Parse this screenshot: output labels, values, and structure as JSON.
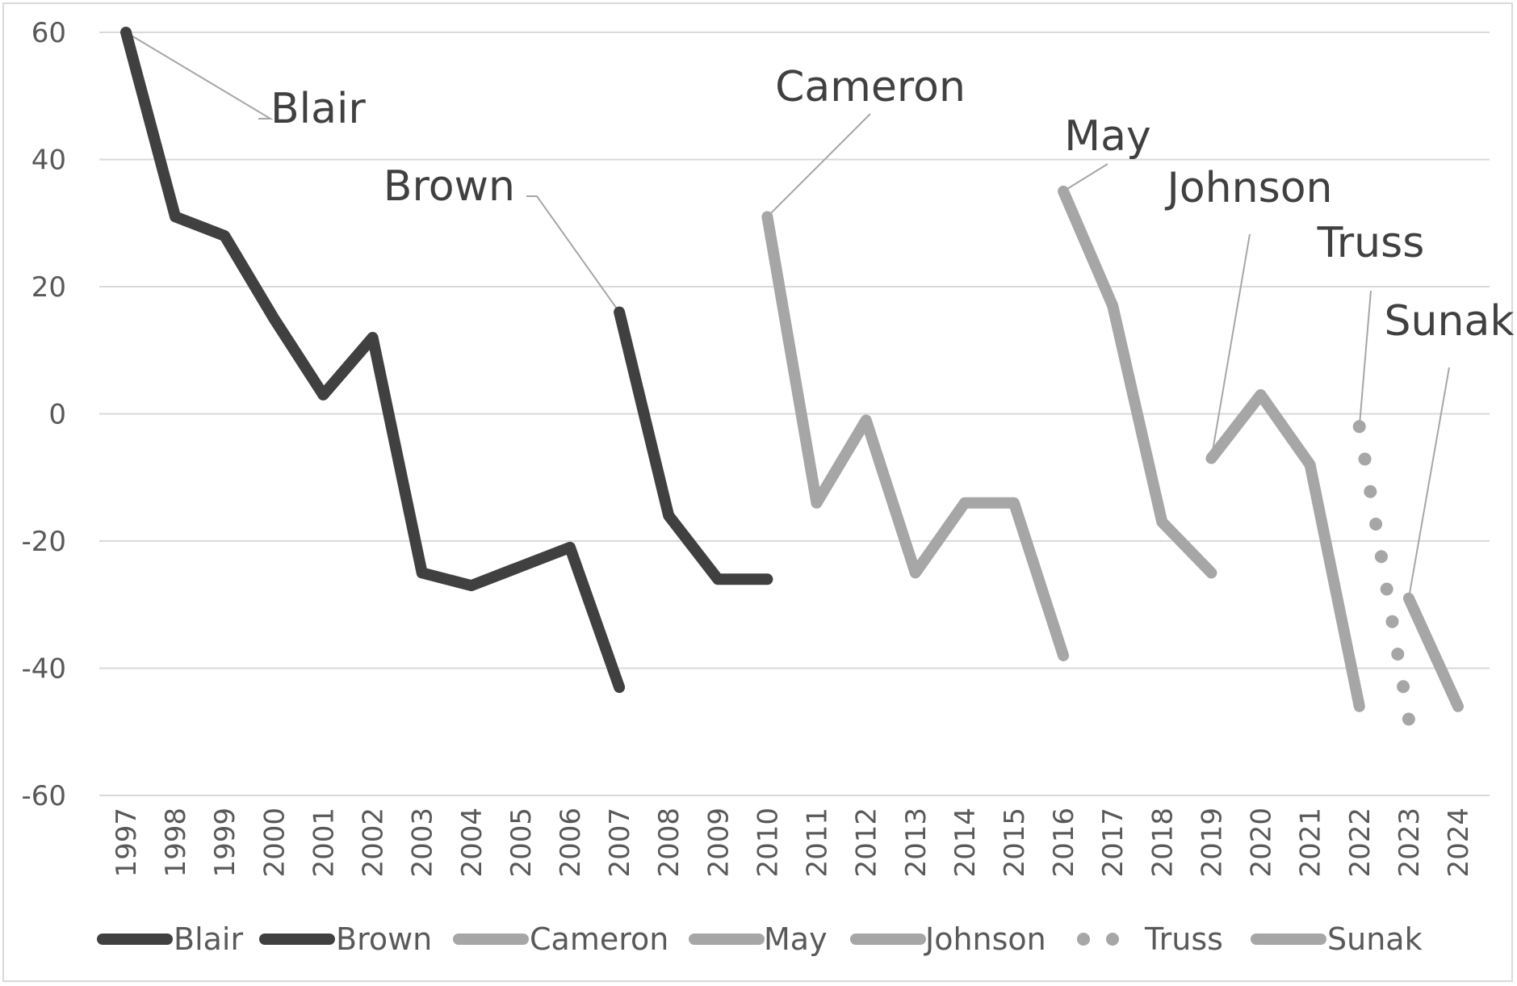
{
  "chart_data": {
    "type": "line",
    "title": "",
    "xlabel": "",
    "ylabel": "",
    "ylim": [
      -60,
      60
    ],
    "yticks": [
      60,
      40,
      20,
      0,
      -20,
      -40,
      -60
    ],
    "x_categories": [
      "1997",
      "1998",
      "1999",
      "2000",
      "2001",
      "2002",
      "2003",
      "2004",
      "2005",
      "2006",
      "2007",
      "2008",
      "2009",
      "2010",
      "2011",
      "2012",
      "2013",
      "2014",
      "2015",
      "2016",
      "2017",
      "2018",
      "2019",
      "2020",
      "2021",
      "2022",
      "2023",
      "2024"
    ],
    "grid": true,
    "legend_position": "bottom",
    "series": [
      {
        "name": "Blair",
        "color": "#404040",
        "style": "solid",
        "points": [
          {
            "x": 1997,
            "y": 60
          },
          {
            "x": 1998,
            "y": 31
          },
          {
            "x": 1999,
            "y": 28
          },
          {
            "x": 2000,
            "y": 15
          },
          {
            "x": 2001,
            "y": 3
          },
          {
            "x": 2002,
            "y": 12
          },
          {
            "x": 2003,
            "y": -25
          },
          {
            "x": 2004,
            "y": -27
          },
          {
            "x": 2005,
            "y": -24
          },
          {
            "x": 2006,
            "y": -21
          },
          {
            "x": 2007,
            "y": -43
          }
        ]
      },
      {
        "name": "Brown",
        "color": "#404040",
        "style": "solid",
        "points": [
          {
            "x": 2007,
            "y": 16
          },
          {
            "x": 2008,
            "y": -16
          },
          {
            "x": 2009,
            "y": -26
          },
          {
            "x": 2010,
            "y": -26
          }
        ]
      },
      {
        "name": "Cameron",
        "color": "#a6a6a6",
        "style": "solid",
        "points": [
          {
            "x": 2010,
            "y": 31
          },
          {
            "x": 2011,
            "y": -14
          },
          {
            "x": 2012,
            "y": -1
          },
          {
            "x": 2013,
            "y": -25
          },
          {
            "x": 2014,
            "y": -14
          },
          {
            "x": 2015,
            "y": -14
          },
          {
            "x": 2016,
            "y": -38
          }
        ]
      },
      {
        "name": "May",
        "color": "#a6a6a6",
        "style": "solid",
        "points": [
          {
            "x": 2016,
            "y": 35
          },
          {
            "x": 2017,
            "y": 17
          },
          {
            "x": 2018,
            "y": -17
          },
          {
            "x": 2019,
            "y": -25
          }
        ]
      },
      {
        "name": "Johnson",
        "color": "#a6a6a6",
        "style": "solid",
        "points": [
          {
            "x": 2019,
            "y": -7
          },
          {
            "x": 2020,
            "y": 3
          },
          {
            "x": 2021,
            "y": -8
          },
          {
            "x": 2022,
            "y": -46
          }
        ]
      },
      {
        "name": "Truss",
        "color": "#a6a6a6",
        "style": "dotted",
        "points": [
          {
            "x": 2022,
            "y": -2
          },
          {
            "x": 2023,
            "y": -48
          }
        ]
      },
      {
        "name": "Sunak",
        "color": "#a6a6a6",
        "style": "solid",
        "points": [
          {
            "x": 2023,
            "y": -29
          },
          {
            "x": 2024,
            "y": -46
          }
        ]
      }
    ],
    "annotations": [
      {
        "text": "Blair",
        "series": "Blair",
        "x": 1997,
        "y": 60
      },
      {
        "text": "Brown",
        "series": "Brown",
        "x": 2007,
        "y": 16
      },
      {
        "text": "Cameron",
        "series": "Cameron",
        "x": 2010,
        "y": 31
      },
      {
        "text": "May",
        "series": "May",
        "x": 2016,
        "y": 35
      },
      {
        "text": "Johnson",
        "series": "Johnson",
        "x": 2019,
        "y": -7
      },
      {
        "text": "Truss",
        "series": "Truss",
        "x": 2022,
        "y": -2
      },
      {
        "text": "Sunak",
        "series": "Sunak",
        "x": 2023,
        "y": -29
      }
    ]
  }
}
